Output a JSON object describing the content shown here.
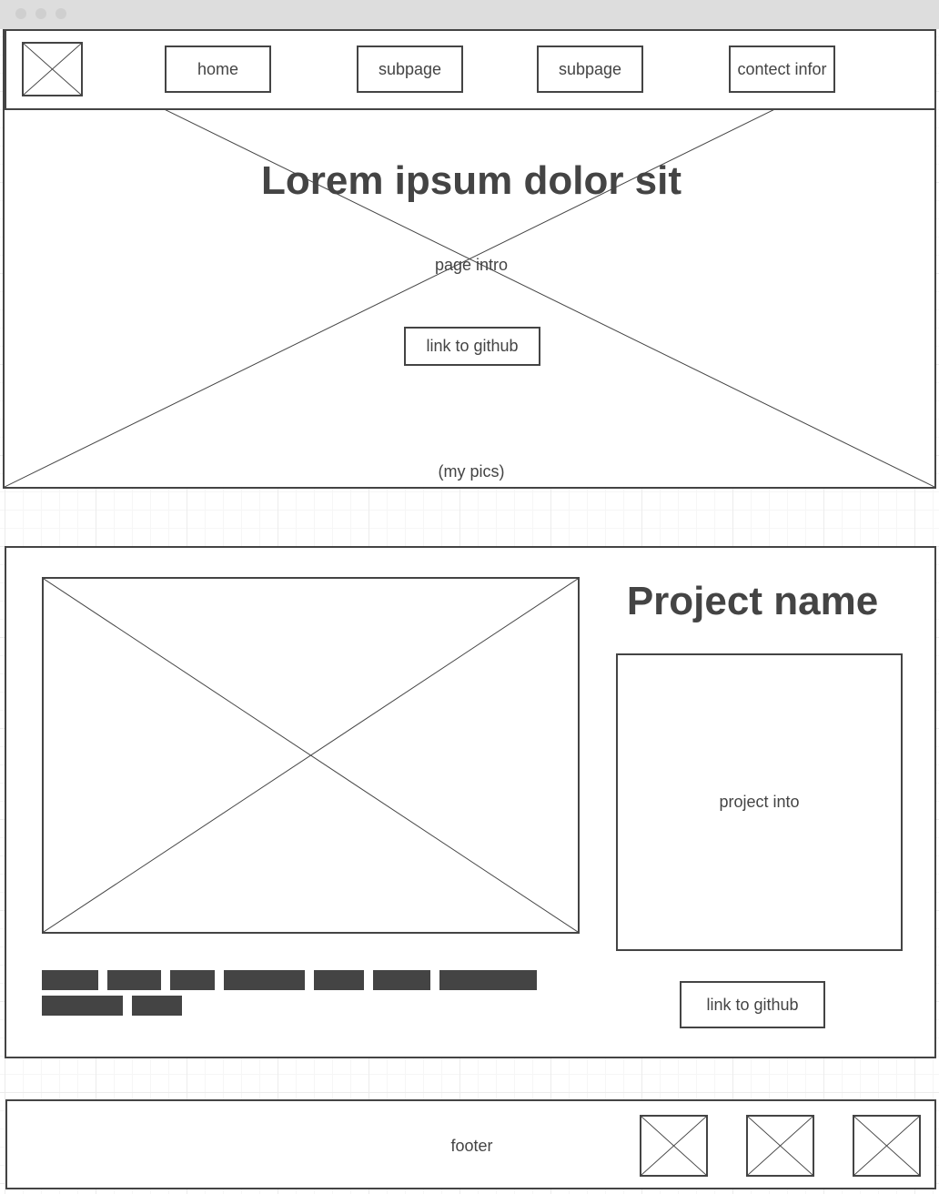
{
  "nav": {
    "items": [
      {
        "label": "home"
      },
      {
        "label": "subpage"
      },
      {
        "label": "subpage"
      },
      {
        "label": "contect infor"
      }
    ]
  },
  "hero": {
    "title": "Lorem ipsum dolor sit",
    "intro": "page intro",
    "link_label": "link to github",
    "caption": "(my pics)"
  },
  "project": {
    "name": "Project name",
    "intro": "project into",
    "link_label": "link to github"
  },
  "footer": {
    "label": "footer"
  },
  "colors": {
    "stroke": "#444444",
    "window_chrome": "#dddddd"
  }
}
